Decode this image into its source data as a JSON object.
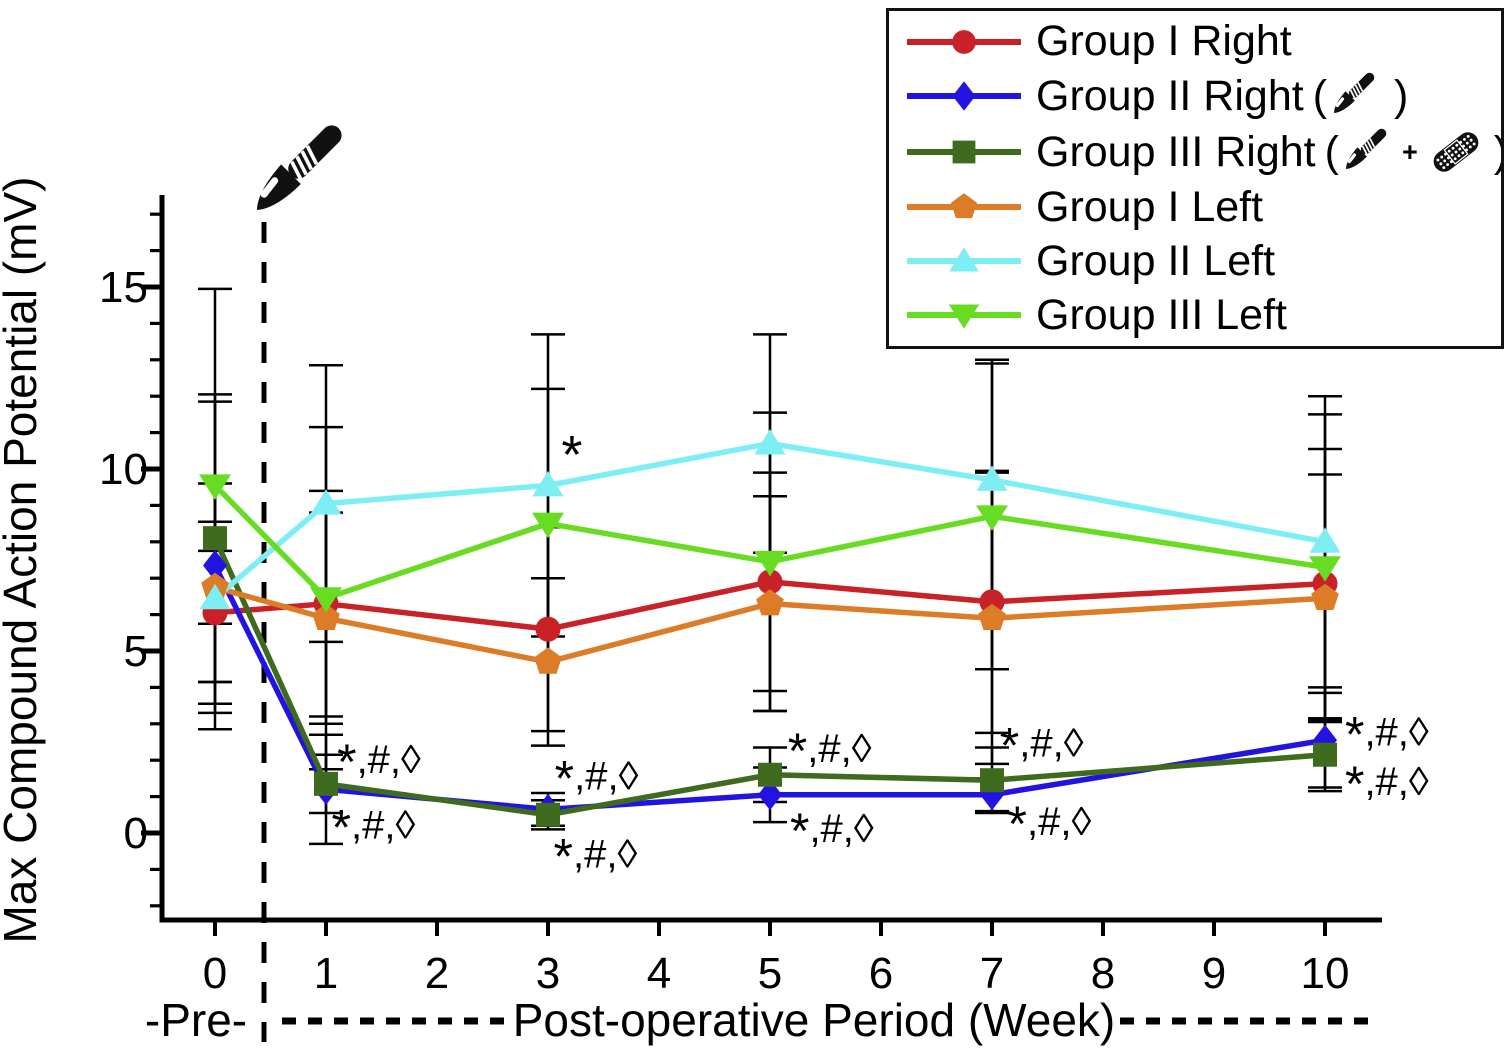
{
  "figure": {
    "y_axis_title": "Max Compound Action Potential (mV)",
    "pre_label": "-Pre-",
    "post_label": "Post-operative Period (Week)"
  },
  "axes": {
    "x_tick_labels": [
      "0",
      "1",
      "2",
      "3",
      "4",
      "5",
      "6",
      "7",
      "8",
      "9",
      "10"
    ],
    "y_tick_labels": [
      {
        "value": 0,
        "label": "0"
      },
      {
        "value": 5,
        "label": "5"
      },
      {
        "value": 10,
        "label": "10"
      },
      {
        "value": 15,
        "label": "15"
      }
    ],
    "y_minor_tick_min": -2,
    "y_minor_tick_max": 17
  },
  "colors": {
    "group1_right": "#c92128",
    "group2_right": "#2213e0",
    "group3_right": "#3e6b1d",
    "group1_left": "#dc7c27",
    "group2_left": "#7deef4",
    "group3_left": "#67dc23",
    "axis": "#000000"
  },
  "legend": {
    "paren_open": "(",
    "paren_close": ")",
    "plus_sign": "+",
    "entries": [
      {
        "label": "Group I Right",
        "marker": "circle",
        "color": "#c92128",
        "icons": []
      },
      {
        "label": "Group II Right",
        "marker": "diamond",
        "color": "#2213e0",
        "icons": [
          "scalpel-icon"
        ]
      },
      {
        "label": "Group III Right",
        "marker": "square",
        "color": "#3e6b1d",
        "icons": [
          "scalpel-icon",
          "bandage-icon"
        ]
      },
      {
        "label": "Group I Left",
        "marker": "pentagon",
        "color": "#dc7c27",
        "icons": []
      },
      {
        "label": "Group II Left",
        "marker": "triangle-up",
        "color": "#7deef4",
        "icons": []
      },
      {
        "label": "Group III Left",
        "marker": "triangle-down",
        "color": "#67dc23",
        "icons": []
      }
    ]
  },
  "annotations": [
    {
      "text": "*",
      "color": "#7deef4",
      "week": 3.12,
      "mv": 10.05
    },
    {
      "text": "*,#,◊",
      "color": "#3e6b1d",
      "week": 1.1,
      "mv": 1.65
    },
    {
      "text": "*,#,◊",
      "color": "#2213e0",
      "week": 1.05,
      "mv": -0.15
    },
    {
      "text": "*,#,◊",
      "color": "#2213e0",
      "week": 3.06,
      "mv": 1.2
    },
    {
      "text": "*,#,◊",
      "color": "#3e6b1d",
      "week": 3.05,
      "mv": -0.95
    },
    {
      "text": "*,#,◊",
      "color": "#3e6b1d",
      "week": 5.16,
      "mv": 1.95
    },
    {
      "text": "*,#,◊",
      "color": "#2213e0",
      "week": 5.18,
      "mv": -0.25
    },
    {
      "text": "*,#,◊",
      "color": "#3e6b1d",
      "week": 7.07,
      "mv": 2.1
    },
    {
      "text": "*,#,◊",
      "color": "#2213e0",
      "week": 7.14,
      "mv": -0.05
    },
    {
      "text": "*,#,◊",
      "color": "#2213e0",
      "week": 10.18,
      "mv": 2.4
    },
    {
      "text": "*,#,◊",
      "color": "#3e6b1d",
      "week": 10.18,
      "mv": 1.05
    }
  ],
  "chart_data": {
    "type": "line",
    "x_label": "Post-operative Period (Week)",
    "y_label": "Max Compound Action Potential (mV)",
    "x": [
      0,
      1,
      3,
      5,
      7,
      10
    ],
    "x_axis_ticks": [
      0,
      1,
      2,
      3,
      4,
      5,
      6,
      7,
      8,
      9,
      10
    ],
    "y_axis_major_ticks": [
      0,
      5,
      10,
      15
    ],
    "xlim": [
      -0.5,
      10.5
    ],
    "ylim": [
      -2.5,
      17.5
    ],
    "grid": false,
    "legend_position": "top-right",
    "error_bars_shown": true,
    "surgery_line_week": 0.44,
    "series": [
      {
        "name": "Group I Right",
        "marker": "circle",
        "color": "#c92128",
        "values": [
          6.05,
          6.3,
          5.6,
          6.9,
          6.35,
          6.85
        ],
        "error": [
          2.5,
          3.1,
          2.8,
          3.0,
          3.6,
          3.7
        ]
      },
      {
        "name": "Group II Right",
        "marker": "diamond",
        "color": "#2213e0",
        "values": [
          7.35,
          1.2,
          0.65,
          1.05,
          1.05,
          2.55
        ],
        "error": [
          4.5,
          1.5,
          0.45,
          0.75,
          0.45,
          1.3
        ]
      },
      {
        "name": "Group III Right",
        "marker": "square",
        "color": "#3e6b1d",
        "values": [
          8.1,
          1.35,
          0.5,
          1.6,
          1.45,
          2.15
        ],
        "error": [
          3.95,
          0.8,
          0.4,
          0.75,
          0.9,
          1.0
        ]
      },
      {
        "name": "Group I Left",
        "marker": "pentagon",
        "color": "#dc7c27",
        "values": [
          6.75,
          5.9,
          4.7,
          6.3,
          5.9,
          6.45
        ],
        "error": [
          1.0,
          2.9,
          2.3,
          2.95,
          4.0,
          3.4
        ]
      },
      {
        "name": "Group II Left",
        "marker": "triangle-up",
        "color": "#7deef4",
        "values": [
          6.45,
          9.05,
          9.55,
          10.7,
          9.7,
          8.0
        ],
        "error": [
          3.15,
          3.8,
          4.15,
          3.0,
          3.3,
          4.0
        ]
      },
      {
        "name": "Group III Left",
        "marker": "triangle-down",
        "color": "#67dc23",
        "values": [
          9.55,
          6.45,
          8.5,
          7.45,
          8.7,
          7.3
        ],
        "error": [
          5.4,
          4.7,
          3.7,
          4.1,
          4.2,
          4.2
        ]
      }
    ]
  }
}
